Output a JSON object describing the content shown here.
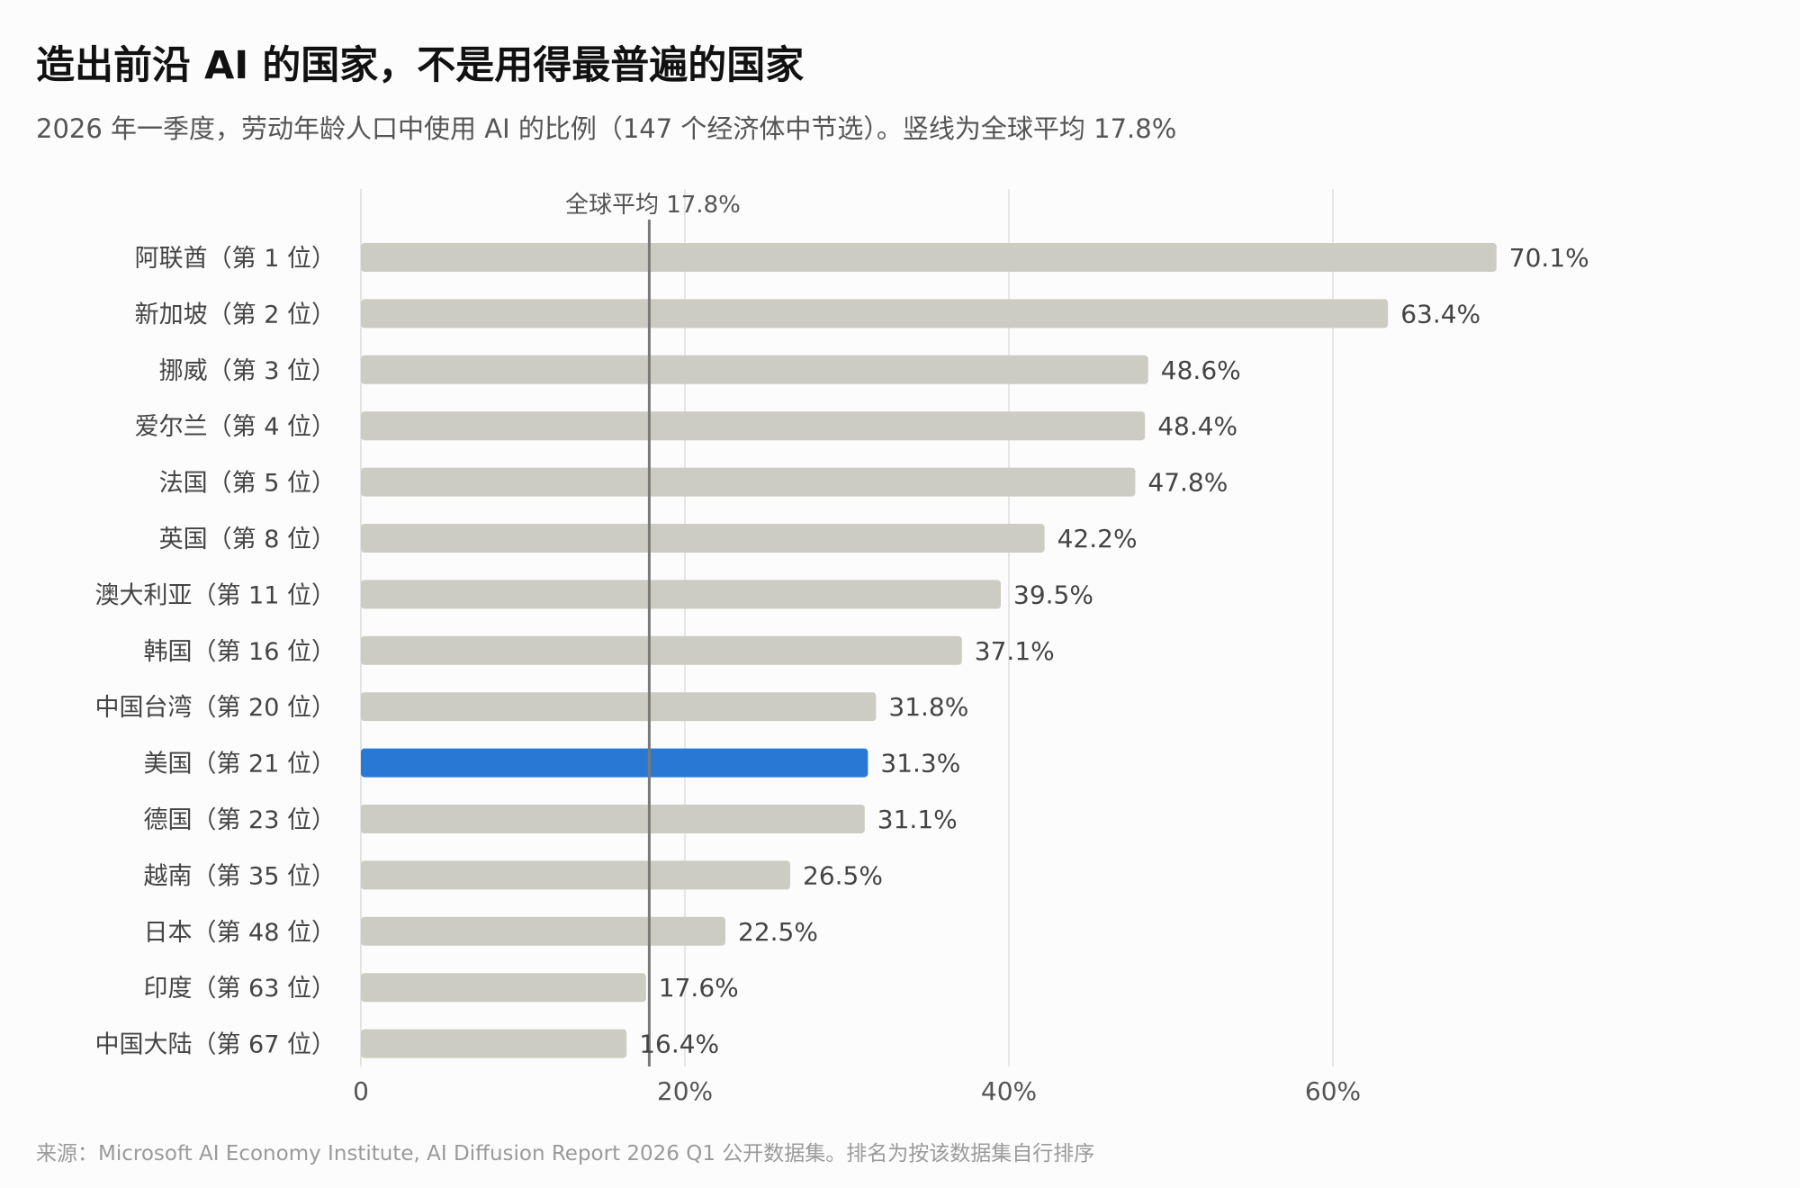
{
  "title": "造出前沿 AI 的国家，不是用得最普遍的国家",
  "subtitle": "2026 年一季度，劳动年龄人口中使用 AI 的比例（147 个经济体中节选）。竖线为全球平均 17.8%",
  "source": "来源：Microsoft AI Economy Institute, AI Diffusion Report 2026 Q1 公开数据集。排名为按该数据集自行排序",
  "colors": {
    "bar": "#ccccc2",
    "highlight": "#2979d4",
    "grid": "#dddddd",
    "average_line": "#7a7a7a",
    "label": "#444444"
  },
  "chart_data": {
    "type": "bar",
    "orientation": "horizontal",
    "categories": [
      "阿联酋（第 1 位）",
      "新加坡（第 2 位）",
      "挪威（第 3 位）",
      "爱尔兰（第 4 位）",
      "法国（第 5 位）",
      "英国（第 8 位）",
      "澳大利亚（第 11 位）",
      "韩国（第 16 位）",
      "中国台湾（第 20 位）",
      "美国（第 21 位）",
      "德国（第 23 位）",
      "越南（第 35 位）",
      "日本（第 48 位）",
      "印度（第 63 位）",
      "中国大陆（第 67 位）"
    ],
    "values": [
      70.1,
      63.4,
      48.6,
      48.4,
      47.8,
      42.2,
      39.5,
      37.1,
      31.8,
      31.3,
      31.1,
      26.5,
      22.5,
      17.6,
      16.4
    ],
    "value_labels": [
      "70.1%",
      "63.4%",
      "48.6%",
      "48.4%",
      "47.8%",
      "42.2%",
      "39.5%",
      "37.1%",
      "31.8%",
      "31.3%",
      "31.1%",
      "26.5%",
      "22.5%",
      "17.6%",
      "16.4%"
    ],
    "highlight": "美国（第 21 位）",
    "xlim": [
      0,
      60
    ],
    "x_ticks": [
      0,
      20,
      40,
      60
    ],
    "x_tick_labels": [
      "0",
      "20%",
      "40%",
      "60%"
    ],
    "grid": true,
    "reference_line": {
      "value": 17.8,
      "label": "全球平均 17.8%"
    }
  }
}
